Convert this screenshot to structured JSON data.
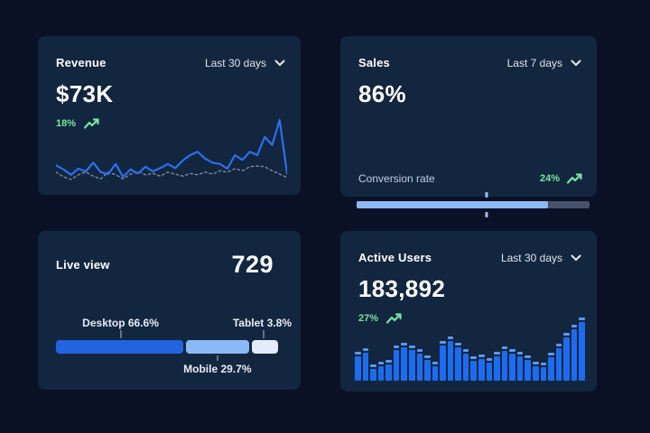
{
  "colors": {
    "page_bg": "#0a1126",
    "card_bg": "#12263f",
    "text_primary": "#ffffff",
    "text_secondary": "#dde4f0",
    "green": "#7ce3a3",
    "line_current": "#2e6ff0",
    "line_previous": "#8892a8",
    "bar_blue": "#1b6cf0",
    "bar_cap": "#5e97f2",
    "progress_fill": "#8cb9f5",
    "progress_track": "#46536b",
    "segment_desktop": "#2264e0",
    "segment_mobile": "#8cb9f5",
    "segment_tablet": "#e2ecfc"
  },
  "cards": {
    "revenue": {
      "title": "Revenue",
      "range": "Last 30 days",
      "value": "$73K",
      "delta": "18%"
    },
    "sales": {
      "title": "Sales",
      "range": "Last 7 days",
      "value": "86%",
      "metric_label": "Conversion rate",
      "metric_delta": "24%"
    },
    "live": {
      "title": "Live view",
      "value": "729",
      "desktop_label": "Desktop 66.6%",
      "mobile_label": "Mobile 29.7%",
      "tablet_label": "Tablet 3.8%"
    },
    "active": {
      "title": "Active Users",
      "range": "Last 30 days",
      "value": "183,892",
      "delta": "27%"
    }
  },
  "chart_data": [
    {
      "id": "revenue-sparkline",
      "type": "line",
      "title": "Revenue",
      "range": "Last 30 days",
      "kpi": "$73K",
      "delta_pct": 18,
      "ylabel": "relative value 0-100 (unlabeled sparkline, estimated from pixels)",
      "x": "days 1-32",
      "grid": false,
      "legend": "none",
      "series": [
        {
          "name": "current period",
          "style": "solid",
          "values": [
            25,
            19,
            11,
            20,
            16,
            29,
            15,
            12,
            27,
            8,
            19,
            13,
            23,
            16,
            21,
            27,
            21,
            32,
            40,
            45,
            35,
            29,
            27,
            20,
            40,
            33,
            45,
            40,
            67,
            55,
            92,
            13
          ]
        },
        {
          "name": "previous period",
          "style": "dashed",
          "values": [
            15,
            8,
            4,
            11,
            15,
            9,
            5,
            15,
            11,
            5,
            12,
            16,
            11,
            13,
            9,
            15,
            12,
            9,
            13,
            11,
            15,
            12,
            17,
            15,
            20,
            17,
            23,
            24,
            23,
            17,
            12,
            7
          ]
        }
      ]
    },
    {
      "id": "sales-progress",
      "type": "progress",
      "title": "Sales",
      "range": "Last 7 days",
      "kpi": "86%",
      "label": "Conversion rate",
      "delta_pct": 24,
      "fill_pct": 82,
      "marker_pct": 56
    },
    {
      "id": "live-stacked-bar",
      "type": "stacked-bar",
      "title": "Live view",
      "kpi": 729,
      "segments": [
        {
          "label": "Desktop",
          "pct": 66.6
        },
        {
          "label": "Mobile",
          "pct": 29.7
        },
        {
          "label": "Tablet",
          "pct": 3.8
        }
      ],
      "display_widths_pct": [
        57,
        28.5,
        12.5
      ]
    },
    {
      "id": "active-users-bars",
      "type": "bar",
      "title": "Active Users",
      "range": "Last 30 days",
      "kpi": "183,892",
      "delta_pct": 27,
      "ylabel": "relative value 0-100 (unlabeled bars, estimated from pixels)",
      "values": [
        45,
        52,
        26,
        30,
        33,
        55,
        60,
        55,
        50,
        40,
        30,
        63,
        70,
        60,
        50,
        38,
        42,
        36,
        46,
        54,
        50,
        45,
        40,
        30,
        28,
        44,
        58,
        75,
        88,
        100
      ]
    }
  ]
}
